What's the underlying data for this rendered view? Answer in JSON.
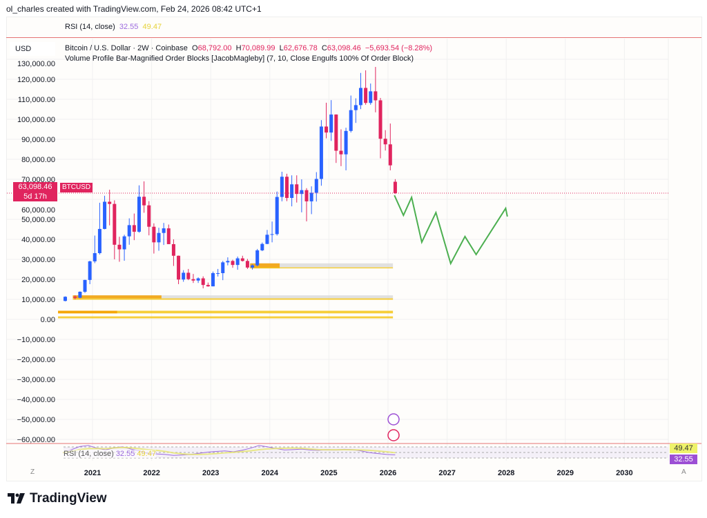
{
  "header": {
    "credit": "ol_charles created with TradingView.com, Feb 24, 2026 08:42 UTC+1"
  },
  "rsi": {
    "label": "RSI (14, close)",
    "value": "32.55",
    "ma_value": "49.47"
  },
  "legend": {
    "currency": "USD",
    "symbol": "Bitcoin / U.S. Dollar · 2W · Coinbase",
    "o_label": "O",
    "o": "68,792.00",
    "h_label": "H",
    "h": "70,089.99",
    "l_label": "L",
    "l": "62,676.78",
    "c_label": "C",
    "c": "63,098.46",
    "change": "−5,693.54 (−8.28%)",
    "indicator": "Volume Profile Bar-Magnified Order Blocks [JacobMagleby] (7, 10, Close Engulfs 100% Of Order Block)"
  },
  "price_label": {
    "price": "63,098.46",
    "countdown": "5d 17h",
    "ticker": "BTCUSD"
  },
  "nav": {
    "zoom": "Z",
    "auto": "A"
  },
  "brand": "TradingView",
  "colors": {
    "up": "#2962ff",
    "down": "#e0245e",
    "projection": "#4caf50",
    "order_block": "#f5c518",
    "order_block_gray": "#d9d9d9",
    "rsi": "#9c6ade",
    "rsi_ma": "#e6e66a"
  },
  "chart_data": {
    "type": "candlestick",
    "yticks": [
      "130,000.00",
      "120,000.00",
      "110,000.00",
      "100,000.00",
      "90,000.00",
      "80,000.00",
      "70,000.00",
      "60,000.00",
      "50,000.00",
      "40,000.00",
      "30,000.00",
      "20,000.00",
      "10,000.00",
      "0.00",
      "−10,000.00",
      "−20,000.00",
      "−30,000.00",
      "−40,000.00",
      "−50,000.00",
      "−60,000.00"
    ],
    "ytick_values": [
      130000,
      120000,
      110000,
      100000,
      90000,
      80000,
      70000,
      60000,
      50000,
      40000,
      30000,
      20000,
      10000,
      0,
      -10000,
      -20000,
      -30000,
      -40000,
      -50000,
      -60000
    ],
    "xticks": [
      "2021",
      "2022",
      "2023",
      "2024",
      "2025",
      "2026",
      "2027",
      "2028",
      "2029",
      "2030"
    ],
    "ylim": [
      -62000,
      131000
    ],
    "xlim": [
      "2020-06",
      "2030-10"
    ],
    "grid": true,
    "candles": [
      [
        "2020-07",
        9200,
        11500,
        9000,
        11300
      ],
      [
        "2020-09",
        11300,
        12000,
        10000,
        10800
      ],
      [
        "2020-10",
        10800,
        14000,
        10500,
        13800
      ],
      [
        "2020-11",
        13800,
        19800,
        13200,
        19700
      ],
      [
        "2020-12",
        19700,
        29300,
        17600,
        29000
      ],
      [
        "2021-01",
        29000,
        41900,
        28100,
        33100
      ],
      [
        "2021-02",
        33100,
        58300,
        32400,
        45200
      ],
      [
        "2021-03",
        45200,
        61800,
        45000,
        58800
      ],
      [
        "2021-04",
        58800,
        64800,
        47000,
        57700
      ],
      [
        "2021-05",
        57700,
        59500,
        30000,
        37300
      ],
      [
        "2021-06",
        37300,
        41300,
        28800,
        35000
      ],
      [
        "2021-07",
        35000,
        42300,
        29300,
        41500
      ],
      [
        "2021-08",
        41500,
        50500,
        37300,
        47100
      ],
      [
        "2021-09",
        47100,
        52900,
        39600,
        43800
      ],
      [
        "2021-10",
        43800,
        67000,
        43300,
        61300
      ],
      [
        "2021-11",
        61300,
        69000,
        53300,
        57000
      ],
      [
        "2021-12",
        57000,
        59100,
        42000,
        46300
      ],
      [
        "2022-01",
        46300,
        48000,
        32900,
        38500
      ],
      [
        "2022-02",
        38500,
        45800,
        34300,
        43200
      ],
      [
        "2022-03",
        43200,
        48200,
        37200,
        45500
      ],
      [
        "2022-04",
        45500,
        47400,
        37700,
        37600
      ],
      [
        "2022-05",
        37600,
        40000,
        26700,
        31800
      ],
      [
        "2022-06",
        31800,
        31900,
        17600,
        19900
      ],
      [
        "2022-07",
        19900,
        24600,
        18800,
        23300
      ],
      [
        "2022-08",
        23300,
        25200,
        19600,
        20100
      ],
      [
        "2022-09",
        20100,
        22700,
        18200,
        19400
      ],
      [
        "2022-10",
        19400,
        21000,
        18200,
        20500
      ],
      [
        "2022-11",
        20500,
        21500,
        15500,
        17200
      ],
      [
        "2022-12",
        17200,
        18400,
        16300,
        16500
      ],
      [
        "2023-01",
        16500,
        23900,
        16500,
        23100
      ],
      [
        "2023-02",
        23100,
        25200,
        21400,
        23100
      ],
      [
        "2023-03",
        23100,
        29200,
        19600,
        28500
      ],
      [
        "2023-04",
        28500,
        31000,
        27000,
        29200
      ],
      [
        "2023-05",
        29200,
        29800,
        25800,
        27200
      ],
      [
        "2023-06",
        27200,
        31400,
        24800,
        30500
      ],
      [
        "2023-07",
        30500,
        31800,
        28900,
        29200
      ],
      [
        "2023-08",
        29200,
        30200,
        25200,
        25900
      ],
      [
        "2023-09",
        25900,
        27500,
        24900,
        27000
      ],
      [
        "2023-10",
        27000,
        35200,
        26500,
        34500
      ],
      [
        "2023-11",
        34500,
        38400,
        34100,
        37700
      ],
      [
        "2023-12",
        37700,
        44700,
        37600,
        42300
      ],
      [
        "2024-01",
        42300,
        48900,
        38500,
        42600
      ],
      [
        "2024-02",
        42600,
        63900,
        41900,
        61200
      ],
      [
        "2024-03",
        61200,
        73800,
        59000,
        71300
      ],
      [
        "2024-04",
        71300,
        72800,
        59100,
        60700
      ],
      [
        "2024-05",
        60700,
        72000,
        56500,
        67500
      ],
      [
        "2024-06",
        67500,
        72000,
        58400,
        62700
      ],
      [
        "2024-07",
        62700,
        70000,
        53500,
        64600
      ],
      [
        "2024-08",
        64600,
        65600,
        49000,
        59000
      ],
      [
        "2024-09",
        59000,
        66500,
        52600,
        63300
      ],
      [
        "2024-10",
        63300,
        73600,
        58900,
        70200
      ],
      [
        "2024-11",
        70200,
        99600,
        66800,
        96400
      ],
      [
        "2024-12",
        96400,
        108300,
        90500,
        93400
      ],
      [
        "2025-01",
        93400,
        109600,
        89200,
        102400
      ],
      [
        "2025-02",
        102400,
        102500,
        78200,
        84300
      ],
      [
        "2025-03",
        84300,
        95000,
        76600,
        82500
      ],
      [
        "2025-04",
        82500,
        95800,
        74500,
        94200
      ],
      [
        "2025-05",
        94200,
        111900,
        93400,
        104600
      ],
      [
        "2025-06",
        104600,
        110500,
        98200,
        107100
      ],
      [
        "2025-07",
        107100,
        123200,
        105100,
        115700
      ],
      [
        "2025-08",
        115700,
        124500,
        107300,
        108200
      ],
      [
        "2025-09",
        108200,
        117900,
        107300,
        114000
      ],
      [
        "2025-10",
        114000,
        126200,
        103500,
        109500
      ],
      [
        "2025-11",
        109500,
        110700,
        80500,
        90300
      ],
      [
        "2025-12",
        90300,
        94600,
        84400,
        87500
      ],
      [
        "2026-01",
        87500,
        97900,
        74500,
        77000
      ],
      [
        "2026-02",
        68792,
        70090,
        62677,
        63098
      ]
    ],
    "current_price": 63098.46,
    "projection": [
      [
        "2026-02-10",
        62000
      ],
      [
        "2026-04-05",
        52000
      ],
      [
        "2026-05-25",
        61000
      ],
      [
        "2026-07-27",
        38600
      ],
      [
        "2026-10-23",
        53400
      ],
      [
        "2027-01-23",
        27900
      ],
      [
        "2027-04-20",
        41400
      ],
      [
        "2027-06-28",
        32400
      ],
      [
        "2027-12-28",
        55500
      ],
      [
        "2028-01-08",
        51400
      ]
    ],
    "order_blocks": [
      {
        "from": "2023-09",
        "to": "2026-02",
        "low": 26000,
        "high": 28000,
        "color": "gray"
      },
      {
        "from": "2023-09",
        "to": "2024-03",
        "low": 25500,
        "high": 28000,
        "color": "orange"
      },
      {
        "from": "2023-09",
        "to": "2026-02",
        "low": 25500,
        "high": 26000,
        "color": "yellow"
      },
      {
        "from": "2020-09",
        "to": "2026-02",
        "low": 10500,
        "high": 12000,
        "color": "gray"
      },
      {
        "from": "2020-09",
        "to": "2022-03",
        "low": 10500,
        "high": 12000,
        "color": "orange"
      },
      {
        "from": "2020-09",
        "to": "2026-02",
        "low": 9800,
        "high": 10500,
        "color": "yellow"
      },
      {
        "from": "2020-06",
        "to": "2026-02",
        "low": 3000,
        "high": 4300,
        "color": "yellow"
      },
      {
        "from": "2020-06",
        "to": "2021-06",
        "low": 3000,
        "high": 4300,
        "color": "orange"
      },
      {
        "from": "2020-06",
        "to": "2026-02",
        "low": 500,
        "high": 1500,
        "color": "yellow"
      }
    ],
    "rsi_series": [
      45,
      62,
      80,
      85,
      70,
      60,
      72,
      78,
      65,
      55,
      40,
      38,
      35,
      30,
      32,
      35,
      42,
      48,
      52,
      55,
      50,
      58,
      70,
      85,
      78,
      68,
      60,
      62,
      65,
      60,
      58,
      62,
      60,
      64,
      62,
      55,
      45,
      40,
      35,
      32.55
    ]
  }
}
